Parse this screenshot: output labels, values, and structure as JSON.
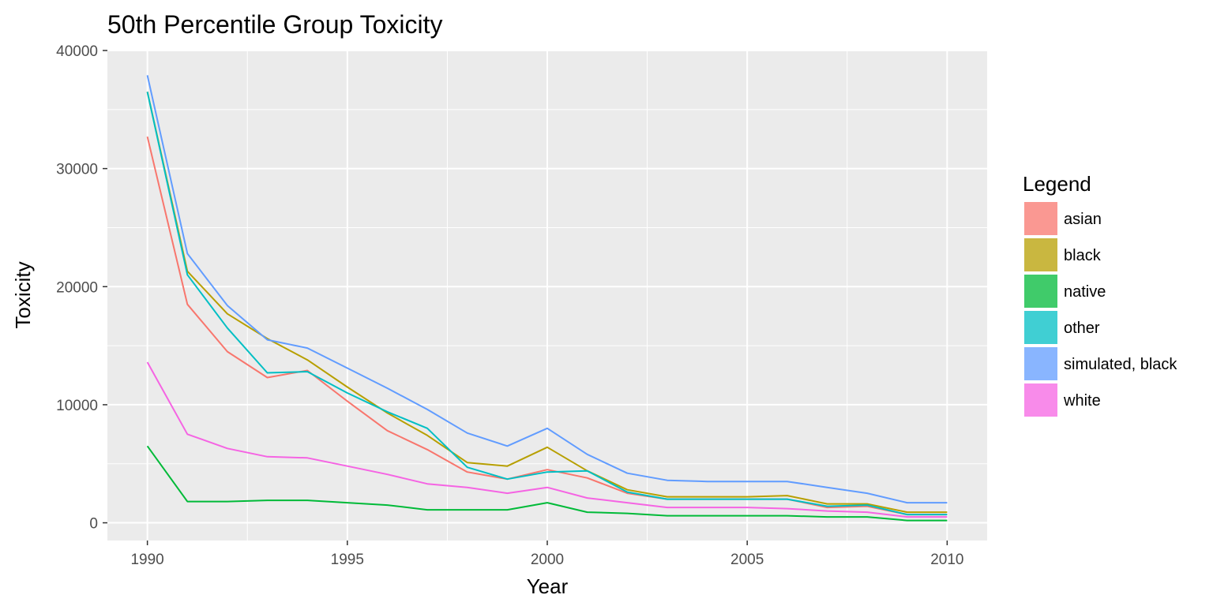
{
  "chart_data": {
    "type": "line",
    "title": "50th Percentile Group Toxicity",
    "xlabel": "Year",
    "ylabel": "Toxicity",
    "xlim": [
      1989,
      2011
    ],
    "ylim": [
      -1500,
      40000
    ],
    "x_ticks": [
      1990,
      1995,
      2000,
      2005,
      2010
    ],
    "y_ticks": [
      0,
      10000,
      20000,
      30000,
      40000
    ],
    "grid": true,
    "legend_title": "Legend",
    "legend_position": "right",
    "x": [
      1990,
      1991,
      1992,
      1993,
      1994,
      1995,
      1996,
      1997,
      1998,
      1999,
      2000,
      2001,
      2002,
      2003,
      2004,
      2005,
      2006,
      2007,
      2008,
      2009,
      2010
    ],
    "series": [
      {
        "name": "asian",
        "color": "#F8766D",
        "values": [
          32700,
          18500,
          14500,
          12300,
          12900,
          10300,
          7800,
          6200,
          4300,
          3700,
          4500,
          3800,
          2500,
          2000,
          2000,
          2000,
          2000,
          1300,
          1400,
          700,
          700
        ]
      },
      {
        "name": "black",
        "color": "#B79F00",
        "values": [
          36500,
          21300,
          17700,
          15600,
          13800,
          11500,
          9300,
          7400,
          5100,
          4800,
          6400,
          4400,
          2800,
          2200,
          2200,
          2200,
          2300,
          1600,
          1600,
          900,
          900
        ]
      },
      {
        "name": "native",
        "color": "#00BA38",
        "values": [
          6500,
          1800,
          1800,
          1900,
          1900,
          1700,
          1500,
          1100,
          1100,
          1100,
          1700,
          900,
          800,
          600,
          600,
          600,
          600,
          500,
          500,
          200,
          200
        ]
      },
      {
        "name": "other",
        "color": "#00BFC4",
        "values": [
          36500,
          21000,
          16500,
          12700,
          12800,
          11000,
          9400,
          8000,
          4700,
          3700,
          4300,
          4400,
          2600,
          2000,
          2000,
          2000,
          2000,
          1400,
          1500,
          700,
          700
        ]
      },
      {
        "name": "simulated, black",
        "color": "#619CFF",
        "values": [
          37900,
          22800,
          18400,
          15500,
          14800,
          13100,
          11400,
          9600,
          7600,
          6500,
          8000,
          5800,
          4200,
          3600,
          3500,
          3500,
          3500,
          3000,
          2500,
          1700,
          1700
        ]
      },
      {
        "name": "white",
        "color": "#F564E3",
        "values": [
          13600,
          7500,
          6300,
          5600,
          5500,
          4800,
          4100,
          3300,
          3000,
          2500,
          3000,
          2100,
          1700,
          1300,
          1300,
          1300,
          1200,
          1000,
          900,
          500,
          500
        ]
      }
    ]
  }
}
